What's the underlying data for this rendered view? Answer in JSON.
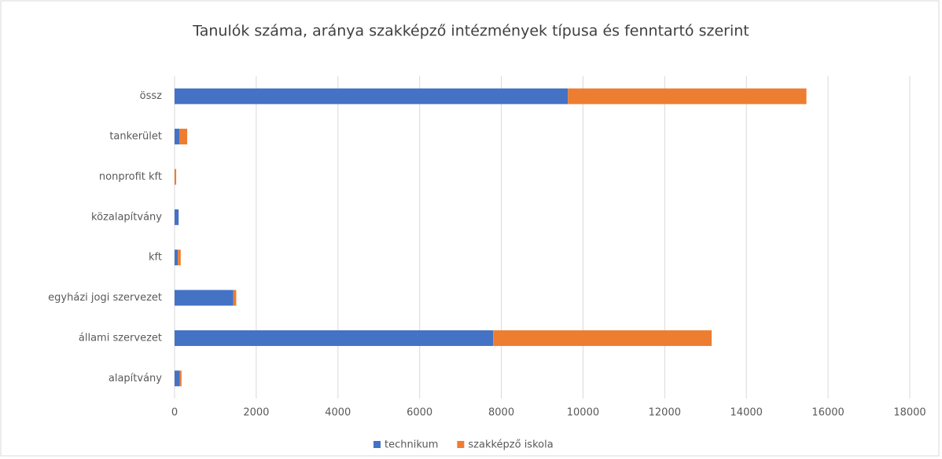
{
  "chart_data": {
    "type": "bar",
    "orientation": "horizontal",
    "stacked": true,
    "title": "Tanulók száma, aránya szakképző intézmények típusa és fenntartó szerint",
    "categories": [
      "össz",
      "tankerület",
      "nonprofit kft",
      "közalapítvány",
      "kft",
      "egyházi jogi szervezet",
      "állami szervezet",
      "alapítvány"
    ],
    "series": [
      {
        "name": "technikum",
        "color": "#4472c4",
        "values": [
          9630,
          115,
          0,
          100,
          80,
          1440,
          7800,
          130
        ]
      },
      {
        "name": "szakképző iskola",
        "color": "#ed7d31",
        "values": [
          5840,
          195,
          40,
          0,
          70,
          70,
          5350,
          40
        ]
      }
    ],
    "xlim": [
      0,
      18000
    ],
    "xticks": [
      0,
      2000,
      4000,
      6000,
      8000,
      10000,
      12000,
      14000,
      16000,
      18000
    ],
    "grid": true,
    "legend": "bottom"
  }
}
